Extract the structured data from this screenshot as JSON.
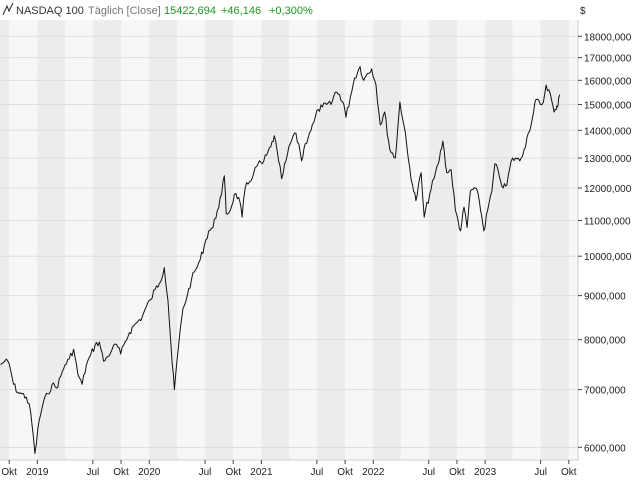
{
  "header": {
    "instrument": "NASDAQ 100",
    "interval": "Täglich [Close]",
    "last": "15422,694",
    "change": "+46,146",
    "change_pct": "+0,300%",
    "currency": "$",
    "positive_color": "#1a9a1a",
    "text_color": "#333333",
    "muted_color": "#777777"
  },
  "chart_data": {
    "type": "line",
    "y_scale": "log",
    "ylim": [
      5800,
      18800
    ],
    "xlim": [
      "2018-09-01",
      "2023-10-31"
    ],
    "y_ticks": [
      6000,
      7000,
      8000,
      9000,
      10000,
      11000,
      12000,
      13000,
      14000,
      15000,
      16000,
      17000,
      18000
    ],
    "y_tick_labels": [
      "6000,000",
      "7000,000",
      "8000,000",
      "9000,000",
      "10000,000",
      "11000,000",
      "12000,000",
      "13000,000",
      "14000,000",
      "15000,000",
      "16000,000",
      "17000,000",
      "18000,000"
    ],
    "x_ticks": [
      {
        "date": "2018-10-01",
        "label": "Okt"
      },
      {
        "date": "2019-01-01",
        "label": "2019"
      },
      {
        "date": "2019-07-01",
        "label": "Jul"
      },
      {
        "date": "2019-10-01",
        "label": "Okt"
      },
      {
        "date": "2020-01-01",
        "label": "2020"
      },
      {
        "date": "2020-07-01",
        "label": "Jul"
      },
      {
        "date": "2020-10-01",
        "label": "Okt"
      },
      {
        "date": "2021-01-01",
        "label": "2021"
      },
      {
        "date": "2021-07-01",
        "label": "Jul"
      },
      {
        "date": "2021-10-01",
        "label": "Okt"
      },
      {
        "date": "2022-01-01",
        "label": "2022"
      },
      {
        "date": "2022-07-01",
        "label": "Jul"
      },
      {
        "date": "2022-10-01",
        "label": "Okt"
      },
      {
        "date": "2023-01-01",
        "label": "2023"
      },
      {
        "date": "2023-07-01",
        "label": "Jul"
      },
      {
        "date": "2023-10-01",
        "label": "Okt"
      }
    ],
    "bands": "alternating quarters",
    "grid": true,
    "series": [
      {
        "color": "#111111",
        "points": [
          [
            "2018-09-03",
            7480
          ],
          [
            "2018-09-17",
            7560
          ],
          [
            "2018-10-01",
            7500
          ],
          [
            "2018-10-15",
            7100
          ],
          [
            "2018-10-29",
            6950
          ],
          [
            "2018-11-12",
            6920
          ],
          [
            "2018-11-26",
            6860
          ],
          [
            "2018-12-10",
            6600
          ],
          [
            "2018-12-24",
            5900
          ],
          [
            "2019-01-07",
            6450
          ],
          [
            "2019-01-21",
            6780
          ],
          [
            "2019-02-04",
            6920
          ],
          [
            "2019-02-18",
            7100
          ],
          [
            "2019-03-04",
            7030
          ],
          [
            "2019-03-18",
            7250
          ],
          [
            "2019-04-01",
            7480
          ],
          [
            "2019-04-15",
            7600
          ],
          [
            "2019-04-29",
            7800
          ],
          [
            "2019-05-13",
            7300
          ],
          [
            "2019-05-27",
            7100
          ],
          [
            "2019-06-10",
            7480
          ],
          [
            "2019-06-24",
            7680
          ],
          [
            "2019-07-08",
            7880
          ],
          [
            "2019-07-22",
            7950
          ],
          [
            "2019-08-05",
            7550
          ],
          [
            "2019-08-19",
            7650
          ],
          [
            "2019-09-02",
            7800
          ],
          [
            "2019-09-16",
            7900
          ],
          [
            "2019-09-30",
            7700
          ],
          [
            "2019-10-14",
            7950
          ],
          [
            "2019-10-28",
            8150
          ],
          [
            "2019-11-11",
            8300
          ],
          [
            "2019-11-25",
            8400
          ],
          [
            "2019-12-09",
            8500
          ],
          [
            "2019-12-23",
            8750
          ],
          [
            "2020-01-06",
            8900
          ],
          [
            "2020-01-20",
            9150
          ],
          [
            "2020-02-03",
            9300
          ],
          [
            "2020-02-19",
            9700
          ],
          [
            "2020-03-02",
            8900
          ],
          [
            "2020-03-16",
            7500
          ],
          [
            "2020-03-23",
            7000
          ],
          [
            "2020-04-06",
            7900
          ],
          [
            "2020-04-20",
            8700
          ],
          [
            "2020-05-04",
            9000
          ],
          [
            "2020-05-18",
            9400
          ],
          [
            "2020-06-01",
            9650
          ],
          [
            "2020-06-15",
            9900
          ],
          [
            "2020-06-29",
            10300
          ],
          [
            "2020-07-13",
            10700
          ],
          [
            "2020-07-27",
            10800
          ],
          [
            "2020-08-10",
            11300
          ],
          [
            "2020-08-24",
            11800
          ],
          [
            "2020-09-02",
            12400
          ],
          [
            "2020-09-08",
            11200
          ],
          [
            "2020-09-21",
            11300
          ],
          [
            "2020-10-05",
            11800
          ],
          [
            "2020-10-19",
            11700
          ],
          [
            "2020-10-30",
            11100
          ],
          [
            "2020-11-09",
            12000
          ],
          [
            "2020-11-23",
            12200
          ],
          [
            "2020-12-07",
            12500
          ],
          [
            "2020-12-21",
            12800
          ],
          [
            "2021-01-04",
            12800
          ],
          [
            "2021-01-18",
            13100
          ],
          [
            "2021-02-01",
            13400
          ],
          [
            "2021-02-12",
            13800
          ],
          [
            "2021-02-26",
            12900
          ],
          [
            "2021-03-08",
            12300
          ],
          [
            "2021-03-22",
            12900
          ],
          [
            "2021-04-05",
            13500
          ],
          [
            "2021-04-19",
            13900
          ],
          [
            "2021-05-03",
            13500
          ],
          [
            "2021-05-12",
            12900
          ],
          [
            "2021-05-24",
            13500
          ],
          [
            "2021-06-07",
            13900
          ],
          [
            "2021-06-21",
            14300
          ],
          [
            "2021-07-05",
            14800
          ],
          [
            "2021-07-19",
            14900
          ],
          [
            "2021-08-02",
            15000
          ],
          [
            "2021-08-16",
            15000
          ],
          [
            "2021-08-30",
            15500
          ],
          [
            "2021-09-13",
            15400
          ],
          [
            "2021-09-27",
            15000
          ],
          [
            "2021-10-04",
            14500
          ],
          [
            "2021-10-18",
            15300
          ],
          [
            "2021-11-01",
            16100
          ],
          [
            "2021-11-19",
            16600
          ],
          [
            "2021-12-01",
            16000
          ],
          [
            "2021-12-13",
            16300
          ],
          [
            "2021-12-27",
            16500
          ],
          [
            "2022-01-10",
            15800
          ],
          [
            "2022-01-24",
            14200
          ],
          [
            "2022-02-07",
            14700
          ],
          [
            "2022-02-24",
            13300
          ],
          [
            "2022-03-14",
            13000
          ],
          [
            "2022-03-29",
            15100
          ],
          [
            "2022-04-11",
            14200
          ],
          [
            "2022-04-25",
            13000
          ],
          [
            "2022-05-09",
            12100
          ],
          [
            "2022-05-20",
            11600
          ],
          [
            "2022-06-06",
            12500
          ],
          [
            "2022-06-16",
            11100
          ],
          [
            "2022-07-04",
            11800
          ],
          [
            "2022-07-18",
            12300
          ],
          [
            "2022-08-01",
            12800
          ],
          [
            "2022-08-16",
            13600
          ],
          [
            "2022-08-29",
            12500
          ],
          [
            "2022-09-12",
            12600
          ],
          [
            "2022-09-26",
            11300
          ],
          [
            "2022-10-13",
            10700
          ],
          [
            "2022-10-24",
            11400
          ],
          [
            "2022-11-03",
            10800
          ],
          [
            "2022-11-14",
            11900
          ],
          [
            "2022-11-30",
            12000
          ],
          [
            "2022-12-13",
            11600
          ],
          [
            "2022-12-28",
            10700
          ],
          [
            "2023-01-09",
            11300
          ],
          [
            "2023-01-23",
            11900
          ],
          [
            "2023-02-02",
            12800
          ],
          [
            "2023-02-16",
            12400
          ],
          [
            "2023-03-01",
            12000
          ],
          [
            "2023-03-13",
            12100
          ],
          [
            "2023-03-27",
            12900
          ],
          [
            "2023-04-10",
            13000
          ],
          [
            "2023-04-24",
            12900
          ],
          [
            "2023-05-08",
            13300
          ],
          [
            "2023-05-22",
            13900
          ],
          [
            "2023-06-05",
            14500
          ],
          [
            "2023-06-16",
            15200
          ],
          [
            "2023-06-30",
            15000
          ],
          [
            "2023-07-10",
            15100
          ],
          [
            "2023-07-19",
            15800
          ],
          [
            "2023-07-28",
            15600
          ],
          [
            "2023-08-07",
            15100
          ],
          [
            "2023-08-14",
            14700
          ],
          [
            "2023-08-21",
            14800
          ],
          [
            "2023-08-25",
            14900
          ],
          [
            "2023-08-29",
            15300
          ],
          [
            "2023-09-01",
            15400
          ]
        ]
      }
    ]
  }
}
